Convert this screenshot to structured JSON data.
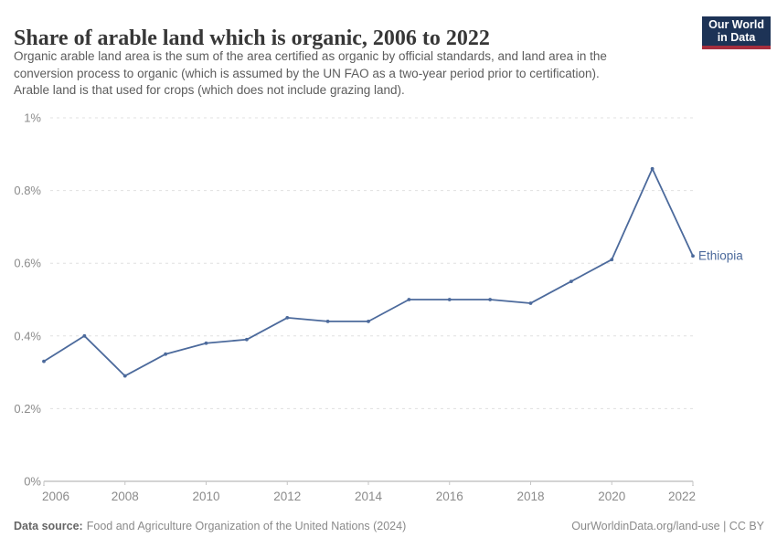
{
  "header": {
    "title": "Share of arable land which is organic, 2006 to 2022",
    "subtitle_lines": [
      "Organic arable land area is the sum of the area certified as organic by official standards, and land area in the",
      "conversion process to organic (which is assumed by the UN FAO as a two-year period prior to certification).",
      "Arable land is that used for crops (which does not include grazing land)."
    ],
    "logo": {
      "line1": "Our World",
      "line2": "in Data"
    }
  },
  "chart_data": {
    "type": "line",
    "title": "Share of arable land which is organic, 2006 to 2022",
    "x": [
      2006,
      2007,
      2008,
      2009,
      2010,
      2011,
      2012,
      2013,
      2014,
      2015,
      2016,
      2017,
      2018,
      2019,
      2020,
      2021,
      2022
    ],
    "series": [
      {
        "name": "Ethiopia",
        "color": "#4c6a9c",
        "values": [
          0.33,
          0.4,
          0.29,
          0.35,
          0.38,
          0.39,
          0.45,
          0.44,
          0.44,
          0.5,
          0.5,
          0.5,
          0.49,
          0.55,
          0.61,
          0.86,
          0.62
        ]
      }
    ],
    "unit": "%",
    "xlabel": "",
    "ylabel": "",
    "ylim": [
      0,
      1
    ],
    "y_ticks": [
      {
        "value": 0,
        "label": "0%"
      },
      {
        "value": 0.2,
        "label": "0.2%"
      },
      {
        "value": 0.4,
        "label": "0.4%"
      },
      {
        "value": 0.6,
        "label": "0.6%"
      },
      {
        "value": 0.8,
        "label": "0.8%"
      },
      {
        "value": 1,
        "label": "1%"
      }
    ],
    "x_ticks": [
      2006,
      2008,
      2010,
      2012,
      2014,
      2016,
      2018,
      2020,
      2022
    ],
    "grid": "horizontal-dashed",
    "legend": "end-of-line-label"
  },
  "footer": {
    "source_label": "Data source:",
    "source_text": "Food and Agriculture Organization of the United Nations (2024)",
    "right_text": "OurWorldinData.org/land-use | CC BY"
  },
  "colors": {
    "accent_blue": "#4c6a9c",
    "grid": "#e0e0e0",
    "axis": "#a8a8a8",
    "tick": "#c6c6c6",
    "tick_label": "#8b8b8b",
    "title_text": "#373737",
    "subtitle_text": "#5c5c5c",
    "footer_text": "#8a8a8a",
    "logo_bg": "#1d3356",
    "logo_stripe": "#a52e3e"
  }
}
